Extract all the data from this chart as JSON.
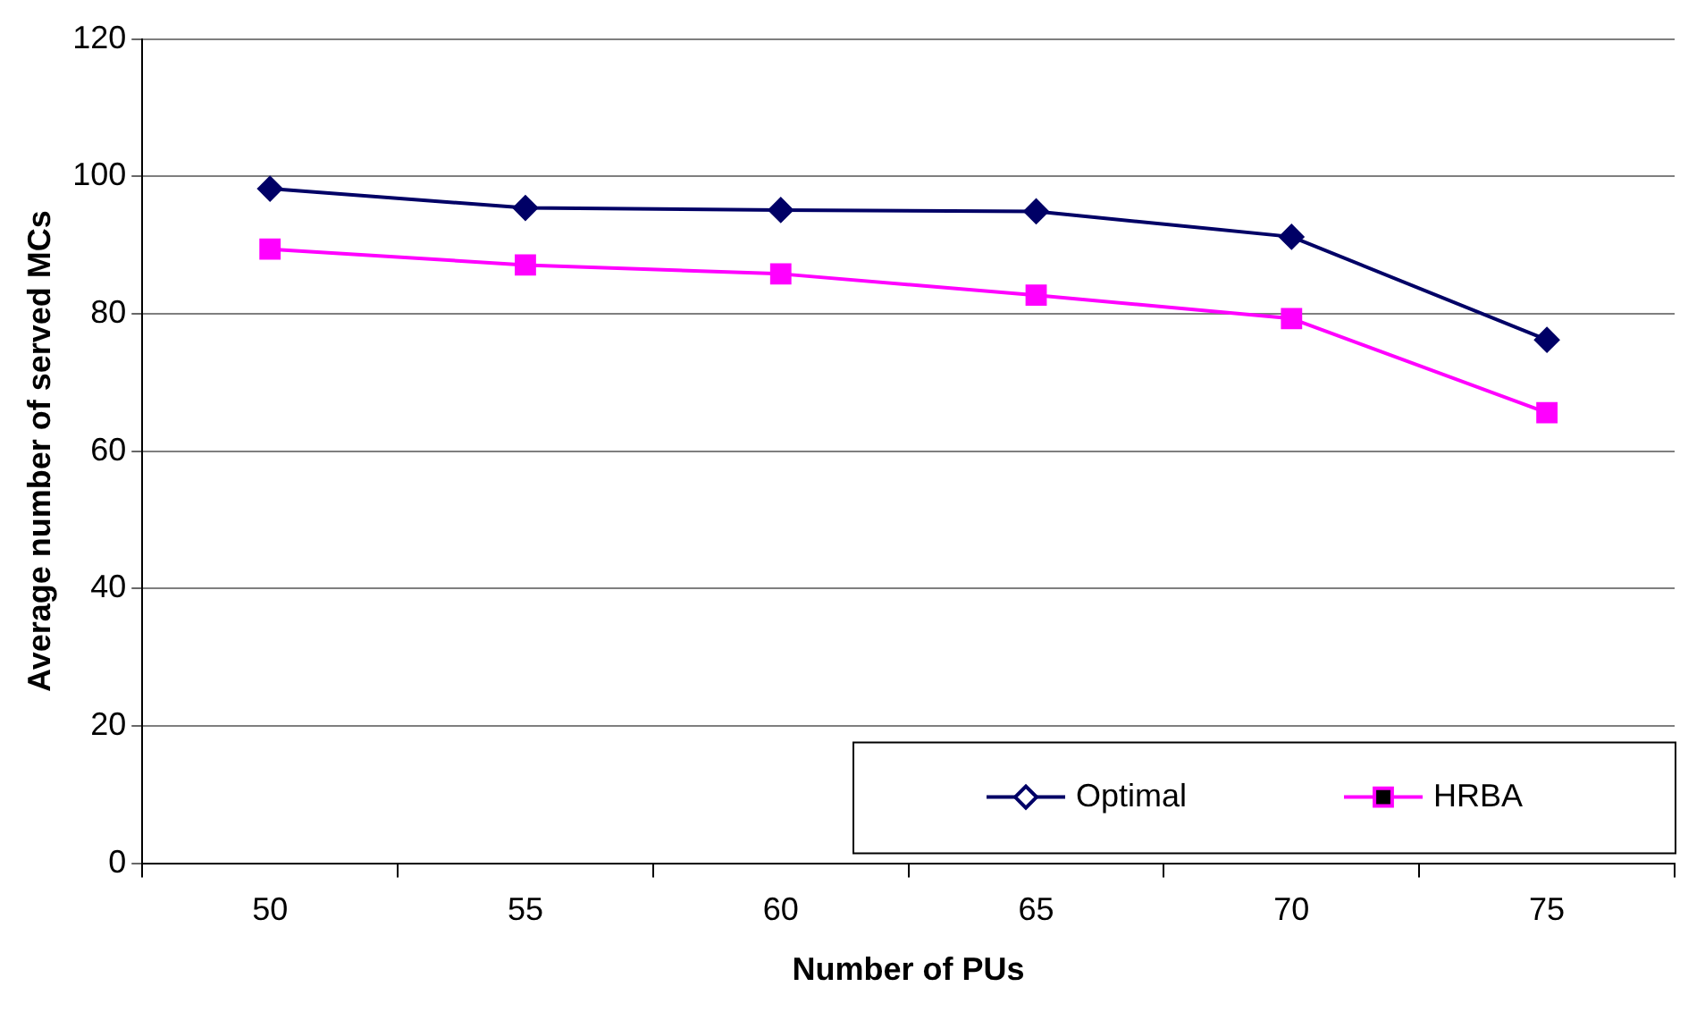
{
  "chart_data": {
    "type": "line",
    "xlabel": "Number of PUs",
    "ylabel": "Average number of served MCs",
    "categories": [
      "50",
      "55",
      "60",
      "65",
      "70",
      "75"
    ],
    "series": [
      {
        "name": "Optimal",
        "color": "#000066",
        "marker": "diamond",
        "values": [
          98.2,
          95.4,
          95.1,
          94.9,
          91.2,
          76.2
        ]
      },
      {
        "name": "HRBA",
        "color": "#ff00ff",
        "marker": "square",
        "values": [
          89.4,
          87.1,
          85.8,
          82.7,
          79.3,
          65.6
        ]
      }
    ],
    "ylim": [
      0,
      120
    ],
    "yticks": [
      0,
      20,
      40,
      60,
      80,
      100,
      120
    ],
    "grid": "y",
    "legend": "bottom right",
    "line_style": "solid"
  }
}
